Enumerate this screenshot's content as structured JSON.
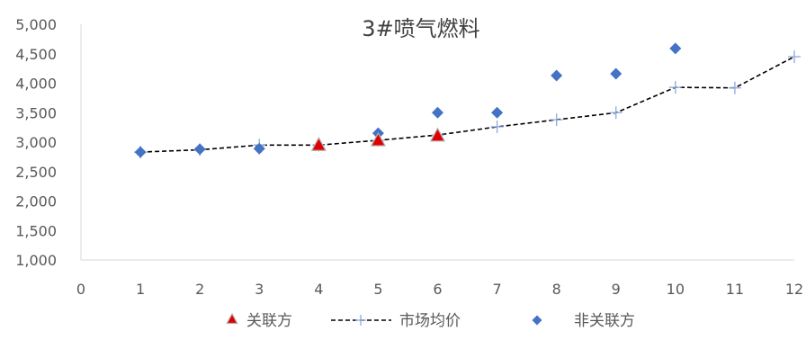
{
  "chart_data": {
    "type": "scatter",
    "title": "3#喷气燃料",
    "xlim": [
      0,
      12
    ],
    "ylim": [
      1000,
      5000
    ],
    "x_ticks": [
      "0",
      "1",
      "2",
      "3",
      "4",
      "5",
      "6",
      "7",
      "8",
      "9",
      "10",
      "11",
      "12"
    ],
    "y_ticks": [
      "1,000",
      "1,500",
      "2,000",
      "2,500",
      "3,000",
      "3,500",
      "4,000",
      "4,500",
      "5,000"
    ],
    "legend_position": "bottom",
    "series": [
      {
        "name": "关联方",
        "marker": "triangle",
        "color": "#e00000",
        "x": [
          4,
          5,
          6
        ],
        "y": [
          2950,
          3030,
          3110
        ]
      },
      {
        "name": "市场均价",
        "marker": "plus",
        "line": "dashed",
        "color": "#000000",
        "marker_color": "#8ea9db",
        "x": [
          1,
          2,
          3,
          4,
          5,
          6,
          7,
          8,
          9,
          10,
          11,
          12
        ],
        "y": [
          2830,
          2870,
          2950,
          2950,
          3030,
          3120,
          3260,
          3380,
          3500,
          3930,
          3920,
          4450
        ]
      },
      {
        "name": "非关联方",
        "marker": "diamond",
        "color": "#4472c4",
        "x": [
          1,
          2,
          3,
          5,
          6,
          7,
          8,
          9,
          10
        ],
        "y": [
          2830,
          2880,
          2890,
          3150,
          3500,
          3500,
          4130,
          4160,
          4590
        ]
      }
    ]
  }
}
